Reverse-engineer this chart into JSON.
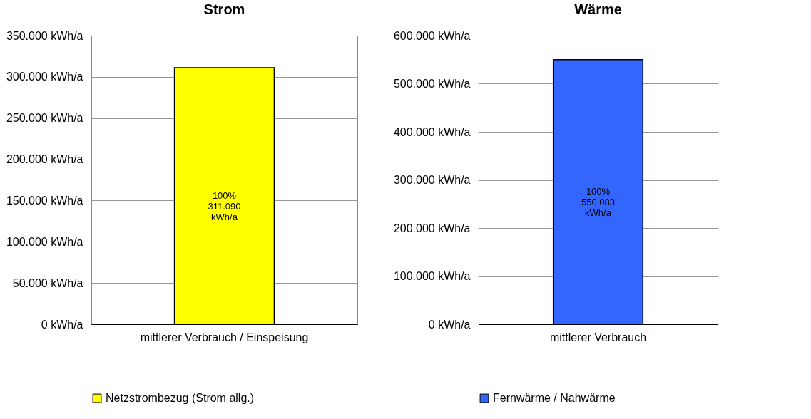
{
  "chart_data": [
    {
      "type": "bar",
      "title": "Strom",
      "categories": [
        "mittlerer Verbrauch / Einspeisung"
      ],
      "series": [
        {
          "name": "Netzstrombezug (Strom allg.)",
          "color": "#ffff00",
          "values": [
            311090
          ],
          "value_labels": [
            "100%\n311.090\nkWh/a"
          ]
        }
      ],
      "ylim": [
        0,
        350000
      ],
      "yticks": [
        {
          "value": 0,
          "label": "0 kWh/a"
        },
        {
          "value": 50000,
          "label": "50.000 kWh/a"
        },
        {
          "value": 100000,
          "label": "100.000 kWh/a"
        },
        {
          "value": 150000,
          "label": "150.000 kWh/a"
        },
        {
          "value": 200000,
          "label": "200.000 kWh/a"
        },
        {
          "value": 250000,
          "label": "250.000 kWh/a"
        },
        {
          "value": 300000,
          "label": "300.000 kWh/a"
        },
        {
          "value": 350000,
          "label": "350.000 kWh/a"
        }
      ],
      "grid": "y",
      "legend": "bottom"
    },
    {
      "type": "bar",
      "title": "Wärme",
      "categories": [
        "mittlerer Verbrauch"
      ],
      "series": [
        {
          "name": "Fernwärme / Nahwärme",
          "color": "#3366ff",
          "values": [
            550083
          ],
          "value_labels": [
            "100%\n550.083\nkWh/a"
          ]
        }
      ],
      "ylim": [
        0,
        600000
      ],
      "yticks": [
        {
          "value": 0,
          "label": "0 kWh/a"
        },
        {
          "value": 100000,
          "label": "100.000 kWh/a"
        },
        {
          "value": 200000,
          "label": "200.000 kWh/a"
        },
        {
          "value": 300000,
          "label": "300.000 kWh/a"
        },
        {
          "value": 400000,
          "label": "400.000 kWh/a"
        },
        {
          "value": 500000,
          "label": "500.000 kWh/a"
        },
        {
          "value": 600000,
          "label": "600.000 kWh/a"
        }
      ],
      "grid": "y",
      "legend": "bottom"
    }
  ]
}
